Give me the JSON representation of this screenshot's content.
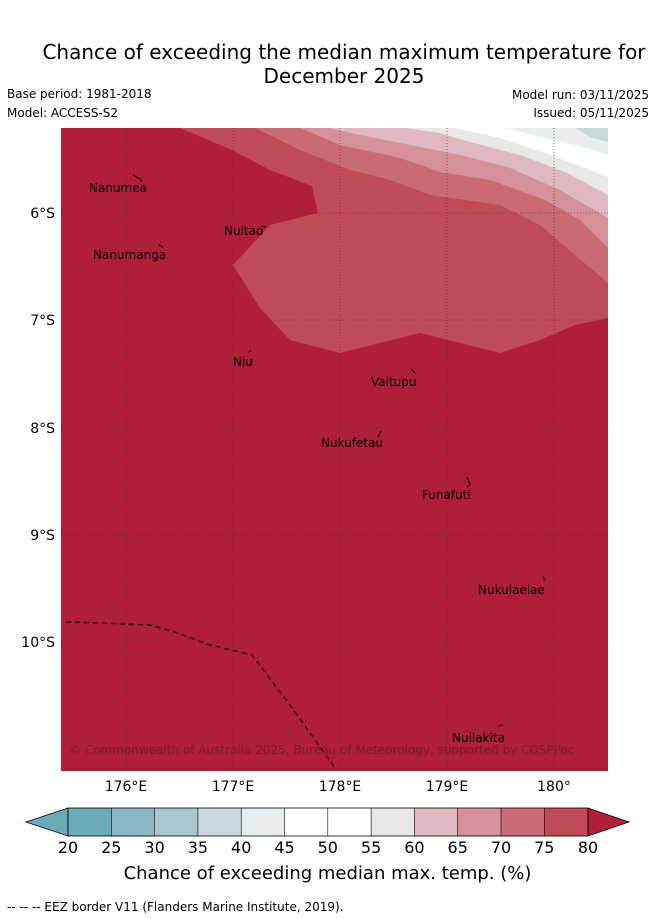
{
  "title_line1": "Chance of exceeding the median maximum temperature for",
  "title_line2": "December 2025",
  "base_period": "Base period: 1981-2018",
  "model": "Model: ACCESS-S2",
  "model_run": "Model run: 03/11/2025",
  "issued": "Issued: 05/11/2025",
  "copyright": "© Commonwealth of Australia 2025, Bureau of Meteorology, supported by COSPPac",
  "footnote": "-- -- -- EEZ border V11 (Flanders Marine Institute, 2019).",
  "colors": {
    "c20": "#6aabba",
    "c25": "#8bb9c5",
    "c30": "#a9c7cc",
    "c35": "#c8d8dd",
    "c40": "#e8eef0",
    "c45": "#ffffff",
    "c50": "#ffffff",
    "c55": "#e8e8e8",
    "c60": "#e0b8c0",
    "c65": "#d69099",
    "c70": "#c96a75",
    "c75": "#c04a58",
    "c80": "#b01e3a"
  },
  "map": {
    "lon_ticks": [
      "176°E",
      "177°E",
      "178°E",
      "179°E",
      "180°"
    ],
    "lat_ticks": [
      "6°S",
      "7°S",
      "8°S",
      "9°S",
      "10°S"
    ],
    "places": [
      {
        "name": "Nanumea",
        "lon": 175.95,
        "lat": -5.7
      },
      {
        "name": "Nuitao",
        "lon": 177.3,
        "lat": -6.15
      },
      {
        "name": "Nanumanga",
        "lon": 176.3,
        "lat": -6.3
      },
      {
        "name": "Niu",
        "lon": 177.15,
        "lat": -7.3
      },
      {
        "name": "Vaitupu",
        "lon": 178.7,
        "lat": -7.5
      },
      {
        "name": "Nukufetau",
        "lon": 178.4,
        "lat": -8.05
      },
      {
        "name": "Funafuti",
        "lon": 179.2,
        "lat": -8.5
      },
      {
        "name": "Nukulaelae",
        "lon": 179.85,
        "lat": -9.4
      },
      {
        "name": "Nuilakita",
        "lon": 179.5,
        "lat": -10.8
      }
    ]
  },
  "colorbar": {
    "tick_labels": [
      "20",
      "25",
      "30",
      "35",
      "40",
      "45",
      "50",
      "55",
      "60",
      "65",
      "70",
      "75",
      "80"
    ],
    "label": "Chance of exceeding median max. temp. (%)"
  }
}
